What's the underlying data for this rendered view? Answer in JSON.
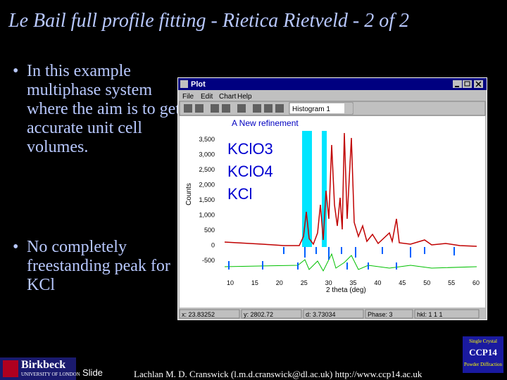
{
  "title": "Le Bail full profile fitting - Rietica Rietveld - 2 of 2",
  "bullets": [
    "In this example multiphase system where the aim is to get accurate unit cell volumes.",
    "No completely freestanding peak for KCl"
  ],
  "plot_window": {
    "title": "Plot",
    "menu": [
      "File",
      "Edit",
      "Chart",
      "Help"
    ],
    "histogram": "Histogram 1",
    "chart_title": "A New refinement",
    "phases": [
      "KClO3",
      "KClO4",
      "KCl"
    ],
    "y_axis_label": "Counts",
    "x_axis_label": "2 theta (deg)",
    "yticks": [
      "3,500",
      "3,000",
      "2,500",
      "2,000",
      "1,500",
      "1,000",
      "500",
      "0",
      "-500"
    ],
    "xticks": [
      "10",
      "15",
      "20",
      "25",
      "30",
      "35",
      "40",
      "45",
      "50",
      "55",
      "60"
    ],
    "status": [
      "x: 23.83252",
      "y: 2802.72",
      "d: 3.73034",
      "Phase: 3",
      "hkl: 1 1 1"
    ]
  },
  "footer": {
    "institution": "Birkbeck",
    "institution_sub": "UNIVERSITY OF LONDON",
    "slide": "Slide",
    "credit": "Lachlan M. D. Cranswick (l.m.d.cranswick@dl.ac.uk) http://www.ccp14.ac.uk",
    "logo": [
      "Single Crystal",
      "CCP14",
      "Powder Diffraction"
    ]
  }
}
